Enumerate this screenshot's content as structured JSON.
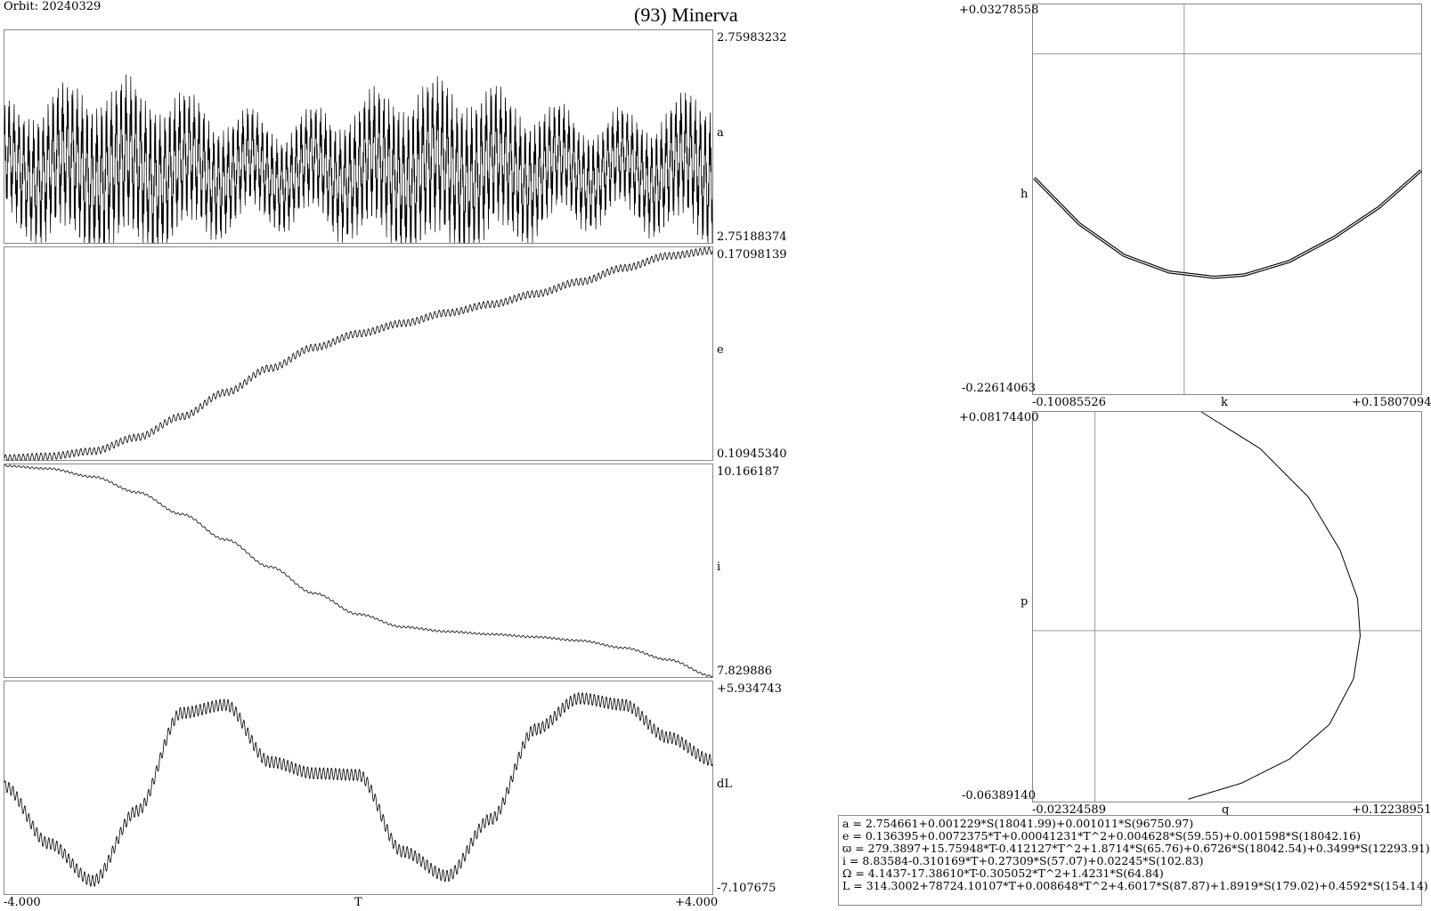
{
  "header": {
    "orbit": "Orbit: 20240329",
    "title": "(93) Minerva"
  },
  "chart_data": [
    {
      "type": "line",
      "id": "a",
      "ylabel": "a",
      "ylim": [
        2.75188374,
        2.75983232
      ],
      "ymax_label": "2.75983232",
      "ymin_label": "2.75188374",
      "xlim": [
        -4.0,
        4.0
      ],
      "note_style": "dense oscillation",
      "trend": {
        "x": [
          -4,
          -3,
          -2,
          -1,
          0,
          1,
          2,
          3,
          4
        ],
        "y": [
          2.7547,
          2.75465,
          2.7546,
          2.75455,
          2.7546,
          2.75465,
          2.75462,
          2.7546,
          2.75468
        ]
      },
      "amplitude": 0.003
    },
    {
      "type": "line",
      "id": "e",
      "ylabel": "e",
      "ylim": [
        0.1094534,
        0.17098139
      ],
      "ymax_label": "0.17098139",
      "ymin_label": "0.10945340",
      "xlim": [
        -4.0,
        4.0
      ],
      "trend": {
        "x": [
          -4,
          -3.5,
          -3,
          -2.5,
          -2,
          -1.5,
          -1,
          -0.5,
          0,
          0.5,
          1,
          1.5,
          2,
          2.5,
          3,
          3.5,
          4
        ],
        "y": [
          0.11,
          0.1105,
          0.112,
          0.116,
          0.122,
          0.129,
          0.136,
          0.142,
          0.146,
          0.149,
          0.152,
          0.1545,
          0.1575,
          0.161,
          0.165,
          0.1685,
          0.17
        ]
      },
      "amplitude": 0.001
    },
    {
      "type": "line",
      "id": "i",
      "ylabel": "i",
      "ylim": [
        7.829886,
        10.166187
      ],
      "ymax_label": "10.166187",
      "ymin_label": "7.829886",
      "xlim": [
        -4.0,
        4.0
      ],
      "trend": {
        "x": [
          -4,
          -3.5,
          -3,
          -2.5,
          -2,
          -1.5,
          -1,
          -0.5,
          0,
          0.5,
          1,
          1.5,
          2,
          2.5,
          3,
          3.5,
          4
        ],
        "y": [
          10.15,
          10.12,
          10.03,
          9.86,
          9.62,
          9.34,
          9.04,
          8.75,
          8.52,
          8.38,
          8.33,
          8.3,
          8.27,
          8.23,
          8.15,
          8.02,
          7.84
        ]
      },
      "amplitude": 0.01
    },
    {
      "type": "line",
      "id": "dL",
      "ylabel": "dL",
      "ylim": [
        -7.107675,
        5.934743
      ],
      "ymax_label": "+5.934743",
      "ymin_label": "-7.107675",
      "xlim": [
        -4.0,
        4.0
      ],
      "xlabel": "T",
      "xmin_label": "-4.000",
      "xmax_label": "+4.000",
      "trend": {
        "x": [
          -4,
          -3.5,
          -3,
          -2.5,
          -2,
          -1.5,
          -1,
          -0.5,
          0,
          0.5,
          1,
          1.5,
          2,
          2.5,
          3,
          3.5,
          4
        ],
        "y": [
          -0.5,
          -4.0,
          -6.3,
          -2.0,
          4.0,
          4.5,
          1.0,
          0.3,
          0.2,
          -4.5,
          -6.0,
          -2.5,
          3.0,
          4.9,
          4.5,
          2.5,
          1.1
        ]
      },
      "amplitude": 0.35
    },
    {
      "type": "scatter",
      "id": "hk",
      "xlabel": "k",
      "ylabel": "h",
      "xlim": [
        -0.10085526,
        0.15807094
      ],
      "ylim": [
        -0.22614063,
        0.03278558
      ],
      "xmin_label": "-0.10085526",
      "xmax_label": "+0.15807094",
      "ymax_label": "+0.03278558",
      "ymin_label": "-0.22614063",
      "curve": {
        "x": [
          -0.1,
          -0.07,
          -0.04,
          -0.01,
          0.02,
          0.04,
          0.07,
          0.1,
          0.13,
          0.158
        ],
        "y": [
          -0.0825,
          -0.113,
          -0.134,
          -0.145,
          -0.1485,
          -0.147,
          -0.138,
          -0.122,
          -0.102,
          -0.0775
        ]
      }
    },
    {
      "type": "line",
      "id": "pq",
      "xlabel": "q",
      "ylabel": "p",
      "xlim": [
        -0.02324589,
        0.12238951
      ],
      "ylim": [
        -0.0638914,
        0.081744
      ],
      "xmin_label": "-0.02324589",
      "xmax_label": "+0.12238951",
      "ymax_label": "+0.08174400",
      "ymin_label": "-0.06389140",
      "curve": {
        "x": [
          0.04,
          0.062,
          0.08,
          0.092,
          0.0985,
          0.0995,
          0.097,
          0.088,
          0.073,
          0.055,
          0.035
        ],
        "y": [
          0.0817,
          0.068,
          0.05,
          0.03,
          0.012,
          -0.002,
          -0.018,
          -0.035,
          -0.048,
          -0.057,
          -0.063
        ]
      }
    }
  ],
  "equations": [
    "a = 2.754661+0.001229*S(18041.99)+0.001011*S(96750.97)",
    "e = 0.136395+0.0072375*T+0.00041231*T^2+0.004628*S(59.55)+0.001598*S(18042.16)",
    "ϖ = 279.3897+15.75948*T-0.412127*T^2+1.8714*S(65.76)+0.6726*S(18042.54)+0.3499*S(12293.91)",
    "i = 8.83584-0.310169*T+0.27309*S(57.07)+0.02245*S(102.83)",
    "Ω = 4.1437-17.38610*T-0.305052*T^2+1.4231*S(64.84)",
    "L = 314.3002+78724.10107*T+0.008648*T^2+4.6017*S(87.87)+1.8919*S(179.02)+0.4592*S(154.14)"
  ]
}
